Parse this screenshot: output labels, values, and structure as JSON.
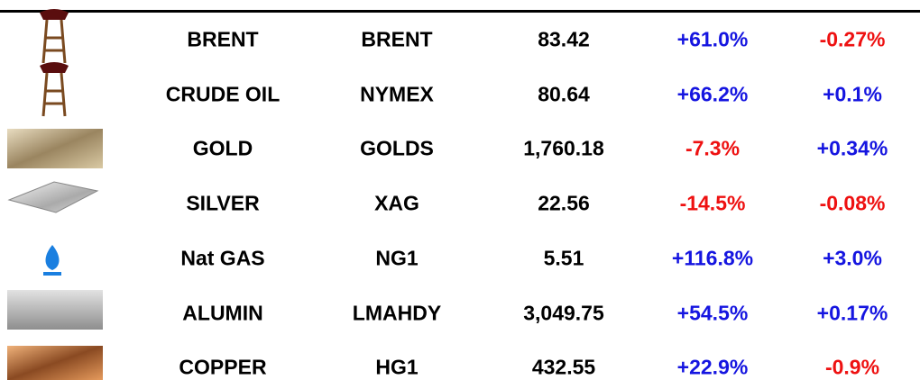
{
  "table": {
    "rows": [
      [
        "BRENT",
        "BRENT",
        "83.42",
        "+61.0%",
        "-0.27%"
      ],
      [
        "CRUDE OIL",
        "NYMEX",
        "80.64",
        "+66.2%",
        "+0.1%"
      ],
      [
        "GOLD",
        "GOLDS",
        "1,760.18",
        "-7.3%",
        "+0.34%"
      ],
      [
        "SILVER",
        "XAG",
        "22.56",
        "-14.5%",
        "-0.08%"
      ],
      [
        "Nat GAS",
        "NG1",
        "5.51",
        "+116.8%",
        "+3.0%"
      ],
      [
        "ALUMIN",
        "LMAHDY",
        "3,049.75",
        "+54.5%",
        "+0.17%"
      ],
      [
        "COPPER",
        "HG1",
        "432.55",
        "+22.9%",
        "-0.9%"
      ]
    ]
  }
}
